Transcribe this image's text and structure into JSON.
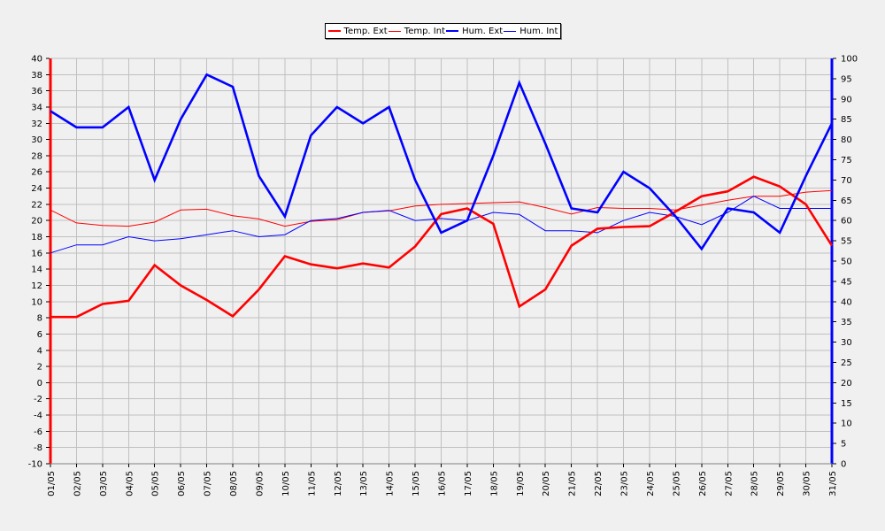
{
  "chart_data": {
    "type": "line",
    "title": "",
    "categories": [
      "01/05",
      "02/05",
      "03/05",
      "04/05",
      "05/05",
      "06/05",
      "07/05",
      "08/05",
      "09/05",
      "10/05",
      "11/05",
      "12/05",
      "13/05",
      "14/05",
      "15/05",
      "16/05",
      "17/05",
      "18/05",
      "19/05",
      "20/05",
      "21/05",
      "22/05",
      "23/05",
      "24/05",
      "25/05",
      "26/05",
      "27/05",
      "28/05",
      "29/05",
      "30/05",
      "31/05"
    ],
    "y_left": {
      "min": -10,
      "max": 40,
      "step": 2
    },
    "y_right": {
      "min": 0,
      "max": 100,
      "step": 5
    },
    "grid": true,
    "legend_position": "top-center",
    "series": [
      {
        "name": "Temp. Ext",
        "axis": "left",
        "color": "#ff0000",
        "width": "thick",
        "values": [
          8.1,
          8.1,
          9.7,
          10.1,
          14.5,
          12.0,
          10.2,
          8.2,
          11.5,
          15.6,
          14.6,
          14.1,
          14.7,
          14.2,
          16.8,
          20.8,
          21.5,
          19.6,
          9.4,
          11.5,
          16.9,
          19.0,
          19.2,
          19.3,
          21.1,
          23.0,
          23.6,
          25.4,
          24.2,
          22.0,
          16.9
        ]
      },
      {
        "name": "Temp. Int",
        "axis": "left",
        "color": "#ff0000",
        "width": "thin",
        "values": [
          21.3,
          19.7,
          19.4,
          19.3,
          19.8,
          21.3,
          21.4,
          20.6,
          20.2,
          19.3,
          19.9,
          20.1,
          21.0,
          21.2,
          21.8,
          22.0,
          22.1,
          22.2,
          22.3,
          21.6,
          20.8,
          21.6,
          21.5,
          21.5,
          21.3,
          21.9,
          22.5,
          23.0,
          23.0,
          23.5,
          23.7
        ]
      },
      {
        "name": "Hum. Ext",
        "axis": "right",
        "color": "#0000ff",
        "width": "thick",
        "values": [
          87,
          83,
          83,
          88,
          70,
          85,
          96,
          93,
          71,
          61,
          81,
          88,
          84,
          88,
          70,
          57,
          60,
          76,
          94,
          79,
          63,
          62,
          72,
          68,
          61,
          53,
          63,
          62,
          57,
          71,
          84
        ]
      },
      {
        "name": "Hum. Int",
        "axis": "right",
        "color": "#0000ff",
        "width": "thin",
        "values": [
          52,
          54,
          54,
          56,
          55,
          55.5,
          56.5,
          57.5,
          56,
          56.5,
          60,
          60.5,
          62,
          62.5,
          60,
          60.5,
          60,
          62,
          61.5,
          57.5,
          57.5,
          57,
          60,
          62,
          61,
          59,
          62,
          66,
          63,
          63,
          63
        ]
      }
    ]
  },
  "colors": {
    "grid": "#c0c0c0",
    "plot_bg": "#f0f0f0",
    "left_axis": "#ff0000",
    "right_axis": "#0000ff"
  }
}
